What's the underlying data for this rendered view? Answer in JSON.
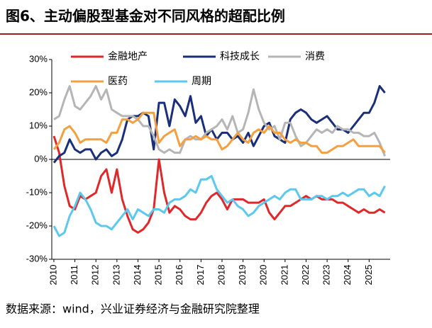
{
  "chart_data": {
    "type": "line",
    "title": "图6、主动偏股型基金对不同风格的超配比例",
    "source": "数据来源：wind，兴业证券经济与金融研究院整理",
    "x": [
      2010,
      2010.25,
      2010.5,
      2010.75,
      2011,
      2011.25,
      2011.5,
      2011.75,
      2012,
      2012.25,
      2012.5,
      2012.75,
      2013,
      2013.25,
      2013.5,
      2013.75,
      2014,
      2014.25,
      2014.5,
      2014.75,
      2015,
      2015.25,
      2015.5,
      2015.75,
      2016,
      2016.25,
      2016.5,
      2016.75,
      2017,
      2017.25,
      2017.5,
      2017.75,
      2018,
      2018.25,
      2018.5,
      2018.75,
      2019,
      2019.25,
      2019.5,
      2019.75,
      2020,
      2020.25,
      2020.5,
      2020.75,
      2021,
      2021.25,
      2021.5,
      2021.75,
      2022,
      2022.25,
      2022.5,
      2022.75,
      2023,
      2023.25,
      2023.5,
      2023.75,
      2024,
      2024.25,
      2024.5,
      2024.75,
      2025,
      2025.25,
      2025.5,
      2025.75
    ],
    "xlim": [
      2009.9,
      2026
    ],
    "xticks": [
      2010,
      2011,
      2012,
      2013,
      2014,
      2015,
      2016,
      2017,
      2018,
      2019,
      2020,
      2021,
      2022,
      2023,
      2024,
      2025
    ],
    "ylim": [
      -30,
      30
    ],
    "yticks": [
      {
        "value": 30,
        "label": "30%"
      },
      {
        "value": 20,
        "label": "20%"
      },
      {
        "value": 10,
        "label": "10%"
      },
      {
        "value": 0,
        "label": "0%"
      },
      {
        "value": -10,
        "label": "-10%"
      },
      {
        "value": -20,
        "label": "-20%"
      },
      {
        "value": -30,
        "label": "-30%"
      }
    ],
    "series": [
      {
        "name": "金融地产",
        "color": "#e0282a",
        "values": [
          7,
          2,
          -8,
          -14,
          -15,
          -11,
          -12,
          -11,
          -10,
          -5,
          -3,
          -10,
          -3,
          -12,
          -17,
          -21,
          -22,
          -21,
          -19,
          -15,
          0,
          -10,
          -16,
          -14,
          -15,
          -17,
          -18,
          -18,
          -16,
          -13,
          -11,
          -10,
          -12,
          -15,
          -12,
          -12,
          -12,
          -13,
          -13,
          -13,
          -12,
          -16,
          -18,
          -16,
          -14,
          -14,
          -13,
          -12,
          -11,
          -12,
          -11,
          -12,
          -12,
          -12,
          -13,
          -13,
          -14,
          -15,
          -16,
          -15,
          -16,
          -16,
          -15,
          -16
        ]
      },
      {
        "name": "科技成长",
        "color": "#1a2f7a",
        "values": [
          -1,
          1,
          2,
          6,
          3,
          2,
          3,
          3,
          0,
          2,
          3,
          1,
          2,
          6,
          12,
          13,
          13,
          14,
          13,
          3,
          17,
          17,
          10,
          18,
          16,
          13,
          19,
          11,
          13,
          7,
          9,
          6,
          8,
          8,
          6,
          7,
          5,
          8,
          4,
          7,
          10,
          11,
          7,
          6,
          5,
          12,
          14,
          15,
          14,
          12,
          11,
          12,
          13,
          11,
          9,
          9,
          8,
          10,
          12,
          14,
          14,
          17,
          22,
          20
        ]
      },
      {
        "name": "消费",
        "color": "#b5b5b5",
        "values": [
          12,
          13,
          18,
          22,
          16,
          15,
          17,
          19,
          22,
          18,
          21,
          15,
          14,
          13,
          13,
          13,
          12,
          10,
          10,
          7,
          3,
          2,
          3,
          2,
          2,
          6,
          7,
          6,
          6,
          8,
          9,
          10,
          12,
          9,
          13,
          8,
          9,
          14,
          21,
          15,
          11,
          9,
          10,
          6,
          11,
          11,
          7,
          4,
          5,
          7,
          9,
          8,
          9,
          8,
          10,
          9,
          9,
          8,
          8,
          7,
          7,
          8,
          5,
          1
        ]
      },
      {
        "name": "医药",
        "color": "#f4a040",
        "values": [
          3,
          5,
          9,
          10,
          8,
          5,
          6,
          6,
          6,
          6,
          5,
          8,
          8,
          12,
          12,
          11,
          12,
          14,
          14,
          14,
          5,
          7,
          8,
          9,
          4,
          6,
          6,
          7,
          6,
          7,
          6,
          6,
          3,
          4,
          6,
          8,
          6,
          5,
          8,
          9,
          8,
          10,
          8,
          8,
          6,
          5,
          6,
          5,
          5,
          4,
          4,
          2,
          2,
          3,
          4,
          4,
          5,
          6,
          4,
          4,
          4,
          4,
          4,
          2
        ]
      },
      {
        "name": "周期",
        "color": "#5bc8ef",
        "values": [
          -20,
          -23,
          -22,
          -17,
          -14,
          -10,
          -12,
          -15,
          -19,
          -20,
          -20,
          -21,
          -19,
          -17,
          -15,
          -18,
          -15,
          -16,
          -17,
          -15,
          -15,
          -16,
          -13,
          -12,
          -12,
          -11,
          -9,
          -10,
          -6,
          -6,
          -5,
          -9,
          -11,
          -13,
          -12,
          -14,
          -15,
          -17,
          -16,
          -14,
          -13,
          -12,
          -11,
          -12,
          -10,
          -9,
          -9,
          -12,
          -12,
          -12,
          -11,
          -11,
          -12,
          -11,
          -11,
          -10,
          -11,
          -10,
          -9,
          -9,
          -11,
          -10,
          -11,
          -8
        ]
      }
    ]
  }
}
